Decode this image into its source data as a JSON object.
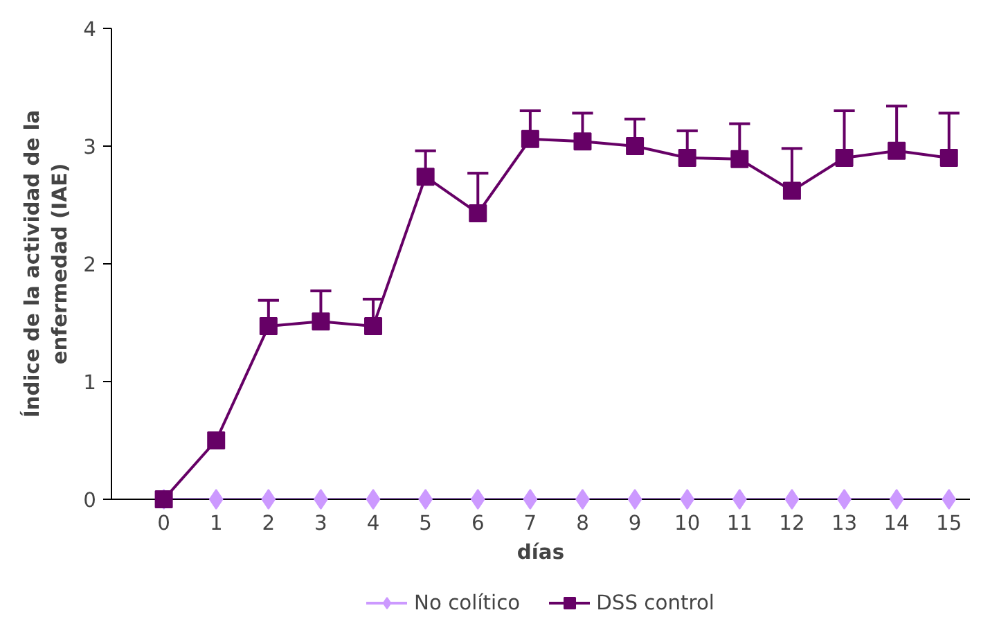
{
  "chart_data": {
    "type": "line",
    "xlabel": "días",
    "ylabel": "Índice de la actividad de la enfermedad (IAE)",
    "x": [
      0,
      1,
      2,
      3,
      4,
      5,
      6,
      7,
      8,
      9,
      10,
      11,
      12,
      13,
      14,
      15
    ],
    "xlim": [
      -1,
      15.4
    ],
    "xticks": [
      0,
      1,
      2,
      3,
      4,
      5,
      6,
      7,
      8,
      9,
      10,
      11,
      12,
      13,
      14,
      15
    ],
    "ylim": [
      0,
      4
    ],
    "yticks": [
      0,
      1,
      2,
      3,
      4
    ],
    "grid": false,
    "legend": "bottom",
    "line_style": "solid",
    "series": [
      {
        "name": "No colítico",
        "color": "#cc99ff",
        "marker": "diamond",
        "values": [
          0,
          0,
          0,
          0,
          0,
          0,
          0,
          0,
          0,
          0,
          0,
          0,
          0,
          0,
          0,
          0
        ]
      },
      {
        "name": "DSS control",
        "color": "#660066",
        "marker": "square",
        "values": [
          0,
          0.5,
          1.47,
          1.51,
          1.47,
          2.74,
          2.43,
          3.06,
          3.04,
          3.0,
          2.9,
          2.89,
          2.62,
          2.9,
          2.96,
          2.9
        ],
        "errors": [
          null,
          null,
          [
            1.47,
            1.69
          ],
          [
            1.51,
            1.77
          ],
          [
            1.47,
            1.7
          ],
          [
            2.74,
            2.96
          ],
          [
            2.43,
            2.77
          ],
          [
            3.06,
            3.3
          ],
          [
            3.04,
            3.28
          ],
          [
            3.0,
            3.23
          ],
          [
            2.9,
            3.13
          ],
          [
            2.89,
            3.19
          ],
          [
            2.62,
            2.98
          ],
          [
            2.9,
            3.3
          ],
          [
            2.96,
            3.34
          ],
          [
            2.9,
            3.28
          ]
        ]
      }
    ]
  }
}
